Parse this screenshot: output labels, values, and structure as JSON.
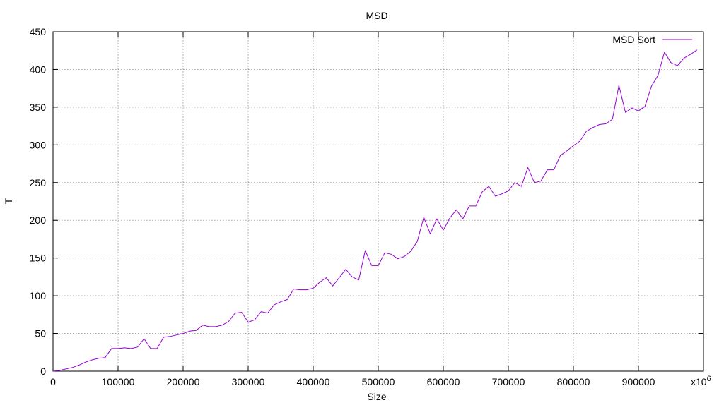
{
  "chart_data": {
    "type": "line",
    "title": "MSD",
    "xlabel": "Size",
    "ylabel": "T",
    "xlim": [
      0,
      1000000
    ],
    "ylim": [
      0,
      450
    ],
    "x_ticks": [
      0,
      100000,
      200000,
      300000,
      400000,
      500000,
      600000,
      700000,
      800000,
      900000
    ],
    "x_tick_labels": [
      "0",
      "100000",
      "200000",
      "300000",
      "400000",
      "500000",
      "600000",
      "700000",
      "800000",
      "900000"
    ],
    "x_axis_multiplier_label": "x10",
    "x_axis_multiplier_exponent": "6",
    "y_ticks": [
      0,
      50,
      100,
      150,
      200,
      250,
      300,
      350,
      400,
      450
    ],
    "y_tick_labels": [
      "0",
      "50",
      "100",
      "150",
      "200",
      "250",
      "300",
      "350",
      "400",
      "450"
    ],
    "grid": true,
    "legend_position": "top-right",
    "series": [
      {
        "name": "MSD Sort",
        "color": "#9400d3",
        "x": [
          0,
          10000,
          20000,
          30000,
          40000,
          50000,
          60000,
          70000,
          80000,
          90000,
          100000,
          110000,
          120000,
          130000,
          140000,
          150000,
          160000,
          170000,
          180000,
          190000,
          200000,
          210000,
          220000,
          230000,
          240000,
          250000,
          260000,
          270000,
          280000,
          290000,
          300000,
          310000,
          320000,
          330000,
          340000,
          350000,
          360000,
          370000,
          380000,
          390000,
          400000,
          410000,
          420000,
          430000,
          440000,
          450000,
          460000,
          470000,
          480000,
          490000,
          500000,
          510000,
          520000,
          530000,
          540000,
          550000,
          560000,
          570000,
          580000,
          590000,
          600000,
          610000,
          620000,
          630000,
          640000,
          650000,
          660000,
          670000,
          680000,
          690000,
          700000,
          710000,
          720000,
          730000,
          740000,
          750000,
          760000,
          770000,
          780000,
          790000,
          800000,
          810000,
          820000,
          830000,
          840000,
          850000,
          860000,
          870000,
          880000,
          890000,
          900000,
          910000,
          920000,
          930000,
          940000,
          950000,
          960000,
          970000,
          980000,
          990000
        ],
        "y": [
          0,
          1,
          3,
          5,
          8,
          12,
          15,
          17,
          18,
          30,
          30,
          31,
          30,
          32,
          43,
          30,
          30,
          45,
          46,
          48,
          50,
          53,
          54,
          61,
          59,
          59,
          61,
          66,
          77,
          78,
          65,
          68,
          79,
          77,
          88,
          92,
          95,
          109,
          108,
          108,
          110,
          118,
          124,
          113,
          124,
          135,
          125,
          121,
          160,
          140,
          140,
          157,
          155,
          149,
          152,
          159,
          172,
          204,
          182,
          202,
          187,
          203,
          214,
          202,
          219,
          219,
          238,
          245,
          232,
          235,
          239,
          250,
          245,
          270,
          250,
          252,
          267,
          267,
          286,
          292,
          299,
          305,
          318,
          323,
          327,
          328,
          334,
          379,
          343,
          349,
          345,
          351,
          378,
          392,
          423,
          409,
          405,
          415,
          420,
          426
        ]
      }
    ]
  }
}
